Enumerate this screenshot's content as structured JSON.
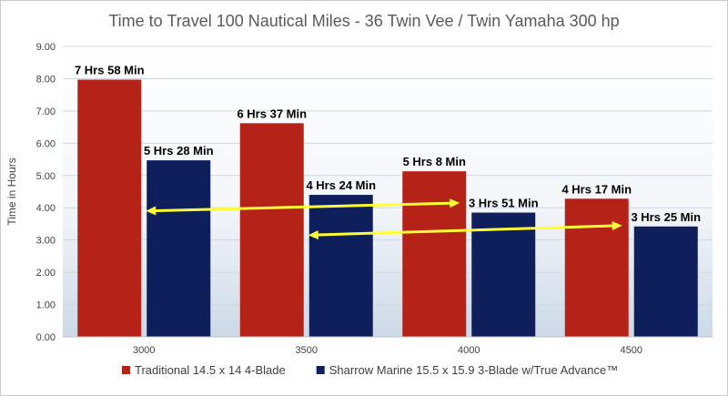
{
  "chart_data": {
    "type": "bar",
    "title": "Time to Travel 100 Nautical Miles - 36 Twin Vee / Twin Yamaha 300 hp",
    "xlabel": "",
    "ylabel": "Time in Hours",
    "ylim": [
      0,
      9
    ],
    "yticks": [
      "0.00",
      "1.00",
      "2.00",
      "3.00",
      "4.00",
      "5.00",
      "6.00",
      "7.00",
      "8.00",
      "9.00"
    ],
    "categories": [
      "3000",
      "3500",
      "4000",
      "4500"
    ],
    "series": [
      {
        "name": "Traditional 14.5 x 14 4-Blade",
        "color": "#b52218",
        "values": [
          7.97,
          6.62,
          5.13,
          4.28
        ],
        "labels": [
          "7 Hrs 58 Min",
          "6 Hrs 37 Min",
          "5 Hrs 8 Min",
          "4 Hrs 17 Min"
        ]
      },
      {
        "name": "Sharrow Marine 15.5 x 15.9 3-Blade w/True Advance™",
        "color": "#0f1f5c",
        "values": [
          5.47,
          4.4,
          3.85,
          3.42
        ],
        "labels": [
          "5 Hrs 28 Min",
          "4 Hrs 24 Min",
          "3 Hrs 51 Min",
          "3 Hrs 25 Min"
        ]
      }
    ],
    "annotations": [
      {
        "type": "double-arrow",
        "color": "#ffff33",
        "from": {
          "x": "3000",
          "y": 3.9
        },
        "to": {
          "x": "4000",
          "y": 4.15
        }
      },
      {
        "type": "double-arrow",
        "color": "#ffff33",
        "from": {
          "x": "3500",
          "y": 3.15
        },
        "to": {
          "x": "4500",
          "y": 3.45
        }
      }
    ],
    "grid": true,
    "legend_position": "bottom"
  }
}
